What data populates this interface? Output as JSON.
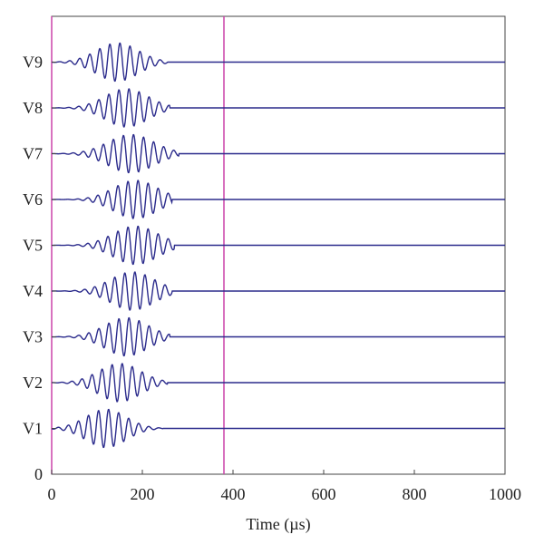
{
  "chart_data": {
    "type": "line",
    "title": "",
    "xlabel": "Time (µs)",
    "ylabel": "",
    "xlim": [
      0,
      1000
    ],
    "xticks": [
      0,
      200,
      400,
      600,
      800,
      1000
    ],
    "ytick_labels": [
      "0",
      "V1",
      "V2",
      "V3",
      "V4",
      "V5",
      "V6",
      "V7",
      "V8",
      "V9"
    ],
    "grid": false,
    "series_color": "#2b2b8c",
    "marker_color": "#cc44aa",
    "vertical_markers": [
      0,
      380
    ],
    "series": [
      {
        "label": "V1",
        "burst_start": 0,
        "burst_end": 230,
        "burst_peak": 120,
        "amplitude": 0.42
      },
      {
        "label": "V2",
        "burst_start": 0,
        "burst_end": 240,
        "burst_peak": 150,
        "amplitude": 0.42
      },
      {
        "label": "V3",
        "burst_start": 0,
        "burst_end": 245,
        "burst_peak": 165,
        "amplitude": 0.42
      },
      {
        "label": "V4",
        "burst_start": 0,
        "burst_end": 250,
        "burst_peak": 178,
        "amplitude": 0.42
      },
      {
        "label": "V5",
        "burst_start": 0,
        "burst_end": 255,
        "burst_peak": 185,
        "amplitude": 0.42
      },
      {
        "label": "V6",
        "burst_start": 0,
        "burst_end": 250,
        "burst_peak": 185,
        "amplitude": 0.42
      },
      {
        "label": "V7",
        "burst_start": 0,
        "burst_end": 265,
        "burst_peak": 175,
        "amplitude": 0.42
      },
      {
        "label": "V8",
        "burst_start": 0,
        "burst_end": 245,
        "burst_peak": 165,
        "amplitude": 0.42
      },
      {
        "label": "V9",
        "burst_start": 0,
        "burst_end": 240,
        "burst_peak": 145,
        "amplitude": 0.42
      }
    ]
  }
}
